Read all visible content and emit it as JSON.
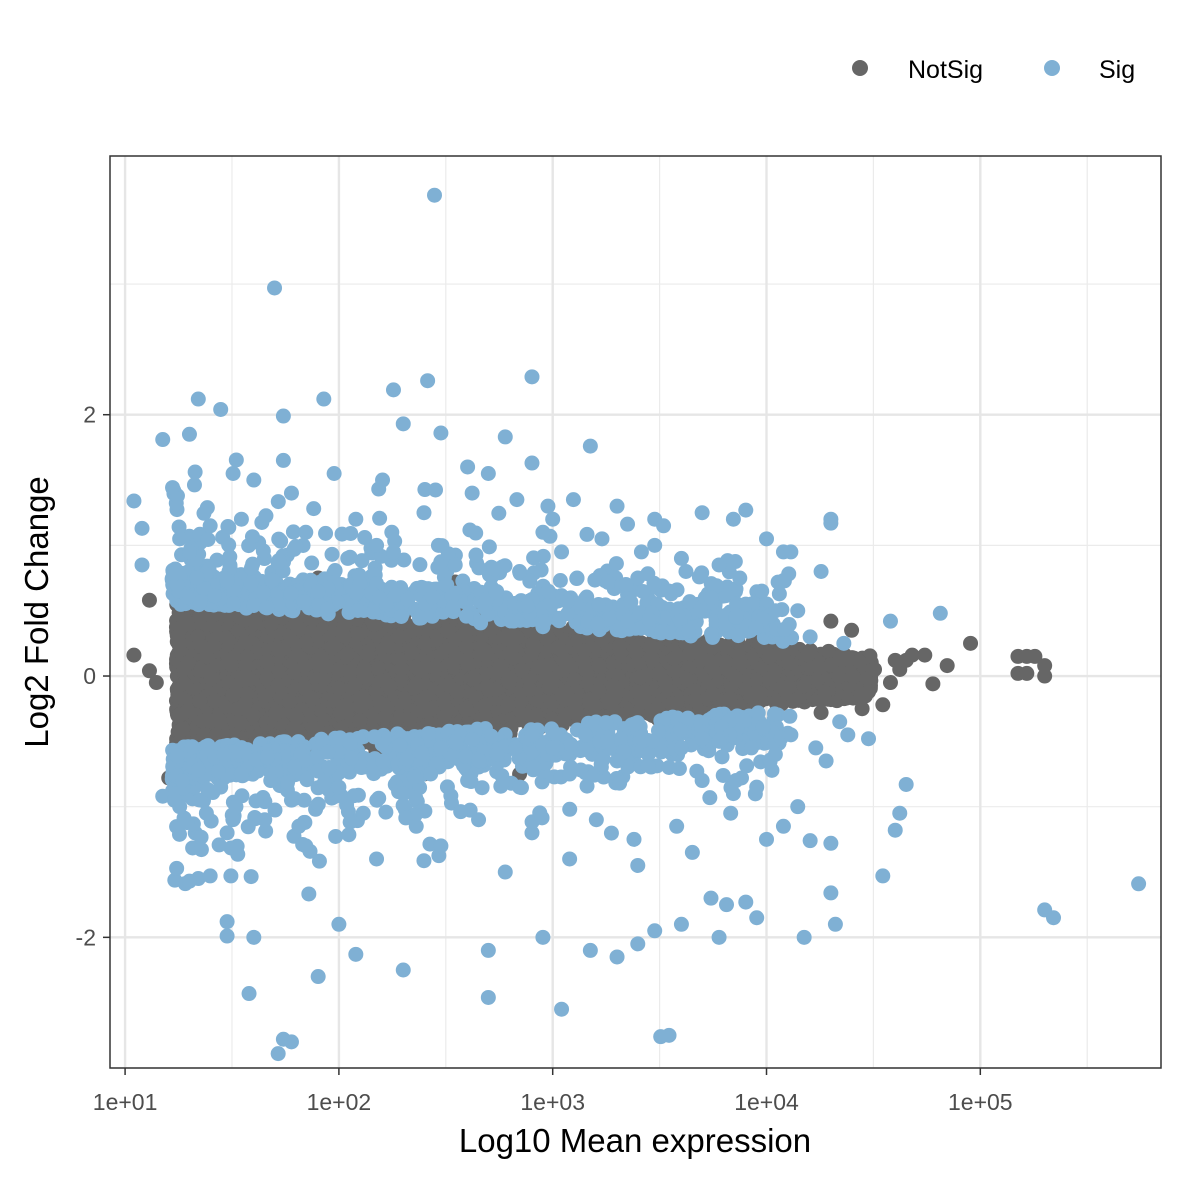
{
  "chart_data": {
    "type": "scatter",
    "title": "",
    "xlabel": "Log10 Mean expression",
    "ylabel": "Log2 Fold Change",
    "x_scale": "log10",
    "xlim": [
      8.5,
      700000
    ],
    "ylim": [
      -3.0,
      3.98
    ],
    "grid": true,
    "legend_position": "top-right",
    "x_ticks": [
      {
        "value": 10,
        "label": "1e+01"
      },
      {
        "value": 100,
        "label": "1e+02"
      },
      {
        "value": 1000,
        "label": "1e+03"
      },
      {
        "value": 10000,
        "label": "1e+04"
      },
      {
        "value": 100000,
        "label": "1e+05"
      }
    ],
    "y_ticks": [
      {
        "value": -2,
        "label": "-2"
      },
      {
        "value": 0,
        "label": "0"
      },
      {
        "value": 2,
        "label": "2"
      }
    ],
    "series": [
      {
        "name": "NotSig",
        "color": "#666666",
        "points": [
          [
            11,
            0.16
          ],
          [
            13,
            0.58
          ],
          [
            13,
            0.04
          ],
          [
            14,
            -0.05
          ],
          [
            16,
            -0.78
          ],
          [
            19,
            -0.55
          ],
          [
            250,
            -0.75
          ],
          [
            700,
            -0.75
          ],
          [
            350,
            0.72
          ],
          [
            80,
            0.75
          ],
          [
            600,
            0.55
          ],
          [
            20000,
            0.42
          ],
          [
            22000,
            0.15
          ],
          [
            25000,
            0.35
          ],
          [
            30000,
            -0.12
          ],
          [
            32000,
            0.05
          ],
          [
            35000,
            -0.22
          ],
          [
            38000,
            -0.05
          ],
          [
            40000,
            0.12
          ],
          [
            42000,
            0.05
          ],
          [
            45000,
            0.12
          ],
          [
            48000,
            0.16
          ],
          [
            55000,
            0.16
          ],
          [
            60000,
            -0.06
          ],
          [
            70000,
            0.08
          ],
          [
            90000,
            0.25
          ],
          [
            150000,
            0.15
          ],
          [
            165000,
            0.15
          ],
          [
            180000,
            0.15
          ],
          [
            150000,
            0.02
          ],
          [
            165000,
            0.02
          ],
          [
            200000,
            0.08
          ],
          [
            200000,
            0.0
          ],
          [
            28000,
            -0.25
          ],
          [
            18000,
            -0.28
          ]
        ]
      },
      {
        "name": "Sig",
        "color": "#7fb0d4",
        "points": [
          [
            280,
            3.68
          ],
          [
            50,
            2.97
          ],
          [
            800,
            2.29
          ],
          [
            260,
            2.26
          ],
          [
            85,
            2.12
          ],
          [
            22,
            2.12
          ],
          [
            180,
            2.19
          ],
          [
            28,
            2.04
          ],
          [
            55,
            1.99
          ],
          [
            200,
            1.93
          ],
          [
            300,
            1.86
          ],
          [
            20,
            1.85
          ],
          [
            15,
            1.81
          ],
          [
            1500,
            1.76
          ],
          [
            800,
            1.63
          ],
          [
            600,
            1.83
          ],
          [
            11,
            1.34
          ],
          [
            12,
            1.13
          ],
          [
            12,
            0.85
          ],
          [
            400,
            1.6
          ],
          [
            500,
            1.55
          ],
          [
            1000,
            1.2
          ],
          [
            2000,
            1.3
          ],
          [
            3000,
            1.2
          ],
          [
            5000,
            1.25
          ],
          [
            7000,
            1.2
          ],
          [
            8000,
            1.27
          ],
          [
            10000,
            1.05
          ],
          [
            12000,
            0.95
          ],
          [
            20000,
            1.2
          ],
          [
            20000,
            1.17
          ],
          [
            13000,
            0.95
          ],
          [
            18000,
            0.8
          ],
          [
            65000,
            0.48
          ],
          [
            38000,
            0.42
          ],
          [
            4000,
            0.9
          ],
          [
            6000,
            0.85
          ],
          [
            3000,
            1.0
          ],
          [
            2500,
            0.75
          ],
          [
            40,
            1.5
          ],
          [
            60,
            1.4
          ],
          [
            120,
            1.2
          ],
          [
            150,
            1.0
          ],
          [
            250,
            1.25
          ],
          [
            900,
            1.1
          ],
          [
            1100,
            0.95
          ],
          [
            14000,
            0.5
          ],
          [
            16000,
            0.3
          ],
          [
            23000,
            0.25
          ],
          [
            24000,
            -0.45
          ],
          [
            30000,
            -0.48
          ],
          [
            45000,
            -0.83
          ],
          [
            42000,
            -1.05
          ],
          [
            40000,
            -1.18
          ],
          [
            35000,
            -1.53
          ],
          [
            20000,
            -1.28
          ],
          [
            16000,
            -1.26
          ],
          [
            20000,
            -1.66
          ],
          [
            21000,
            -1.9
          ],
          [
            15000,
            -2.0
          ],
          [
            200000,
            -1.79
          ],
          [
            220000,
            -1.85
          ],
          [
            550000,
            -1.59
          ],
          [
            8000,
            -1.73
          ],
          [
            6500,
            -1.75
          ],
          [
            5500,
            -1.7
          ],
          [
            3500,
            -2.75
          ],
          [
            3200,
            -2.76
          ],
          [
            1100,
            -2.55
          ],
          [
            500,
            -2.46
          ],
          [
            38,
            -2.43
          ],
          [
            55,
            -2.78
          ],
          [
            60,
            -2.8
          ],
          [
            52,
            -2.89
          ],
          [
            80,
            -2.3
          ],
          [
            200,
            -2.25
          ],
          [
            120,
            -2.13
          ],
          [
            100,
            -1.9
          ],
          [
            30,
            -1.88
          ],
          [
            30,
            -1.99
          ],
          [
            40,
            -2.0
          ],
          [
            22,
            -1.55
          ],
          [
            20,
            -1.57
          ],
          [
            25,
            -1.53
          ],
          [
            500,
            -2.1
          ],
          [
            900,
            -2.0
          ],
          [
            1500,
            -2.1
          ],
          [
            2000,
            -2.15
          ],
          [
            2500,
            -2.05
          ],
          [
            3000,
            -1.95
          ],
          [
            4000,
            -1.9
          ],
          [
            6000,
            -2.0
          ],
          [
            9000,
            -1.85
          ],
          [
            15,
            -0.92
          ],
          [
            18,
            -1.0
          ],
          [
            24,
            -1.05
          ],
          [
            30,
            -1.2
          ],
          [
            45,
            -1.1
          ],
          [
            70,
            -1.3
          ],
          [
            150,
            -1.4
          ],
          [
            300,
            -1.3
          ],
          [
            600,
            -1.5
          ],
          [
            1200,
            -1.4
          ],
          [
            2500,
            -1.45
          ],
          [
            4500,
            -1.35
          ],
          [
            10000,
            -1.25
          ],
          [
            12000,
            -1.15
          ],
          [
            14000,
            -1.0
          ],
          [
            9000,
            -0.85
          ],
          [
            7000,
            -0.9
          ],
          [
            5000,
            -0.8
          ],
          [
            3500,
            -0.7
          ],
          [
            2000,
            -0.65
          ],
          [
            1200,
            -0.75
          ],
          [
            700,
            -0.85
          ],
          [
            400,
            -0.8
          ],
          [
            200,
            -0.9
          ],
          [
            100,
            -0.85
          ],
          [
            60,
            -0.95
          ],
          [
            35,
            -0.75
          ],
          [
            22,
            -0.72
          ],
          [
            20,
            0.95
          ],
          [
            18,
            1.05
          ],
          [
            25,
            1.15
          ],
          [
            35,
            1.2
          ],
          [
            70,
            1.1
          ],
          [
            110,
            0.9
          ],
          [
            180,
            0.95
          ],
          [
            350,
            0.85
          ],
          [
            700,
            0.8
          ],
          [
            1300,
            0.75
          ],
          [
            2200,
            0.7
          ],
          [
            3500,
            0.65
          ],
          [
            5500,
            0.6
          ],
          [
            8000,
            0.55
          ],
          [
            11000,
            0.5
          ],
          [
            6000,
            -0.5
          ],
          [
            8500,
            -0.55
          ],
          [
            11000,
            -0.6
          ],
          [
            13000,
            -0.45
          ],
          [
            17000,
            -0.55
          ],
          [
            19000,
            -0.65
          ],
          [
            22000,
            -0.35
          ],
          [
            4000,
            -0.55
          ],
          [
            2800,
            -0.6
          ],
          [
            1800,
            -0.5
          ],
          [
            1000,
            -0.55
          ],
          [
            550,
            -0.6
          ],
          [
            300,
            -0.55
          ],
          [
            160,
            -0.65
          ],
          [
            90,
            -0.7
          ],
          [
            48,
            -0.8
          ],
          [
            28,
            -0.85
          ],
          [
            17,
            -0.95
          ],
          [
            950,
            1.3
          ],
          [
            1700,
            1.05
          ],
          [
            2600,
            0.95
          ],
          [
            4200,
            0.8
          ],
          [
            3300,
            1.15
          ],
          [
            7500,
            0.75
          ],
          [
            9500,
            0.65
          ],
          [
            800,
            -1.2
          ],
          [
            1600,
            -1.1
          ],
          [
            2400,
            -1.25
          ],
          [
            3800,
            -1.15
          ],
          [
            6800,
            -1.05
          ],
          [
            450,
            -1.1
          ],
          [
            230,
            -1.15
          ],
          [
            130,
            -1.05
          ],
          [
            65,
            -1.15
          ],
          [
            33,
            -1.0
          ],
          [
            160,
            1.5
          ],
          [
            95,
            1.55
          ],
          [
            55,
            1.65
          ],
          [
            32,
            1.55
          ],
          [
            420,
            1.4
          ],
          [
            680,
            1.35
          ],
          [
            1250,
            1.35
          ]
        ]
      }
    ]
  },
  "legend": {
    "items": [
      {
        "label": "NotSig",
        "color": "#666666"
      },
      {
        "label": "Sig",
        "color": "#7fb0d4"
      }
    ]
  }
}
